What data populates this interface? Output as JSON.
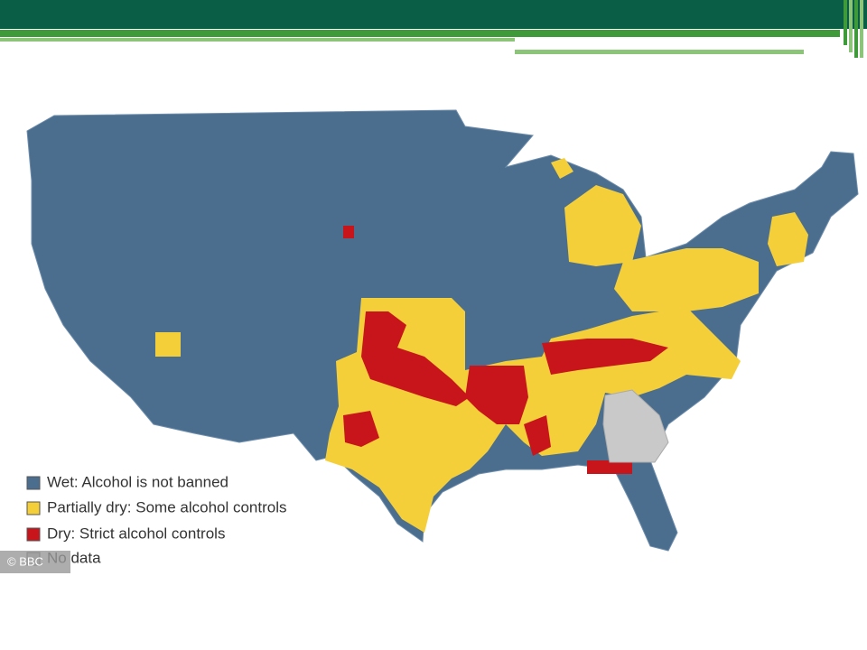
{
  "legend": [
    {
      "label": "Wet: Alcohol is not banned",
      "color": "#4b6e8e"
    },
    {
      "label": "Partially dry: Some alcohol controls",
      "color": "#f4cf3a"
    },
    {
      "label": "Dry: Strict alcohol controls",
      "color": "#c8151b"
    },
    {
      "label": "No data",
      "color": "#c9c9c9"
    }
  ],
  "credit": "© BBC"
}
